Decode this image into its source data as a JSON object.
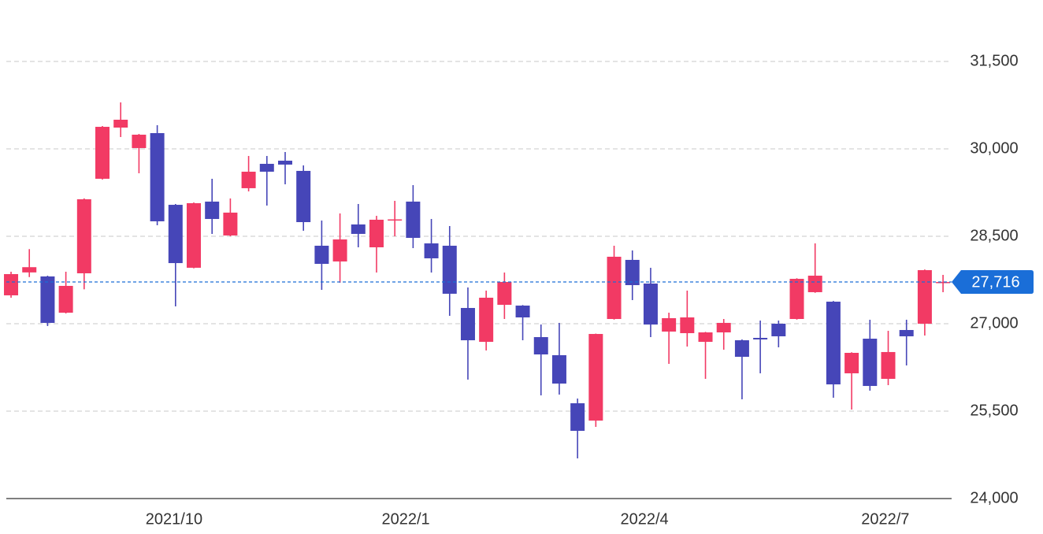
{
  "chart_data": {
    "type": "candlestick",
    "up_color": "#f23a64",
    "down_color": "#4646b8",
    "last_color": "#1a6ed8",
    "grid": true,
    "xlim": [
      -0.26,
      51.47
    ],
    "xticks": [
      {
        "value": 8.92,
        "label": "2021/10"
      },
      {
        "value": 21.6,
        "label": "2022/1"
      },
      {
        "value": 34.66,
        "label": "2022/4"
      },
      {
        "value": 47.84,
        "label": "2022/7"
      }
    ],
    "ylim": [
      24000,
      31500
    ],
    "yticks": [
      {
        "value": 24000,
        "label": "24,000"
      },
      {
        "value": 25500,
        "label": "25,500"
      },
      {
        "value": 27000,
        "label": "27,000"
      },
      {
        "value": 28500,
        "label": "28,500"
      },
      {
        "value": 30000,
        "label": "30,000"
      },
      {
        "value": 31500,
        "label": "31,500"
      }
    ],
    "open": [
      27487,
      27880,
      27811,
      27189,
      27865,
      29487,
      30365,
      30014,
      30270,
      29040,
      27960,
      29095,
      28514,
      29325,
      29743,
      29797,
      29622,
      28338,
      28068,
      28703,
      28311,
      28770,
      29095,
      28378,
      28338,
      27270,
      26689,
      27324,
      27311,
      26770,
      26460,
      25635,
      25338,
      27081,
      28095,
      27689,
      26865,
      26838,
      26689,
      26851,
      26716,
      26757,
      27000,
      27081,
      27541,
      27378,
      26149,
      26743,
      26054,
      26892,
      27000,
      27700
    ],
    "high": [
      27892,
      28280,
      27824,
      27892,
      29150,
      30392,
      30797,
      30256,
      30406,
      29054,
      29080,
      29487,
      29149,
      29878,
      29878,
      29946,
      29716,
      28770,
      28892,
      29054,
      28851,
      29108,
      29378,
      28797,
      28676,
      27622,
      27568,
      27878,
      27320,
      26986,
      27014,
      25716,
      26830,
      28338,
      28257,
      27959,
      27189,
      27568,
      26860,
      27081,
      26730,
      27054,
      27054,
      27780,
      28378,
      27390,
      26510,
      27068,
      26878,
      27068,
      27930,
      27838
    ],
    "low": [
      27446,
      27800,
      26960,
      27176,
      27590,
      29473,
      30203,
      29581,
      28689,
      27297,
      27950,
      28541,
      28500,
      29270,
      29027,
      29392,
      28595,
      27581,
      27703,
      28311,
      27878,
      28500,
      28297,
      27878,
      27135,
      26041,
      26541,
      27081,
      26716,
      25770,
      25784,
      24689,
      25230,
      27070,
      27405,
      26770,
      26311,
      26608,
      26054,
      26554,
      25703,
      26149,
      26595,
      27070,
      27530,
      25730,
      25527,
      25851,
      25946,
      26284,
      26797,
      27541
    ],
    "close": [
      27851,
      27970,
      27014,
      27649,
      29135,
      30378,
      30500,
      30243,
      28757,
      28040,
      29068,
      28797,
      28906,
      29608,
      29608,
      29730,
      28743,
      28027,
      28446,
      28541,
      28784,
      28790,
      28473,
      28122,
      27514,
      26716,
      27446,
      27716,
      27108,
      26473,
      25973,
      25162,
      26824,
      28149,
      27662,
      26986,
      27095,
      27108,
      26851,
      27014,
      26432,
      26730,
      26784,
      27770,
      27824,
      25959,
      26500,
      25932,
      26514,
      26784,
      27919,
      27716
    ],
    "last": {
      "value": 27716,
      "label": "27,716"
    }
  }
}
